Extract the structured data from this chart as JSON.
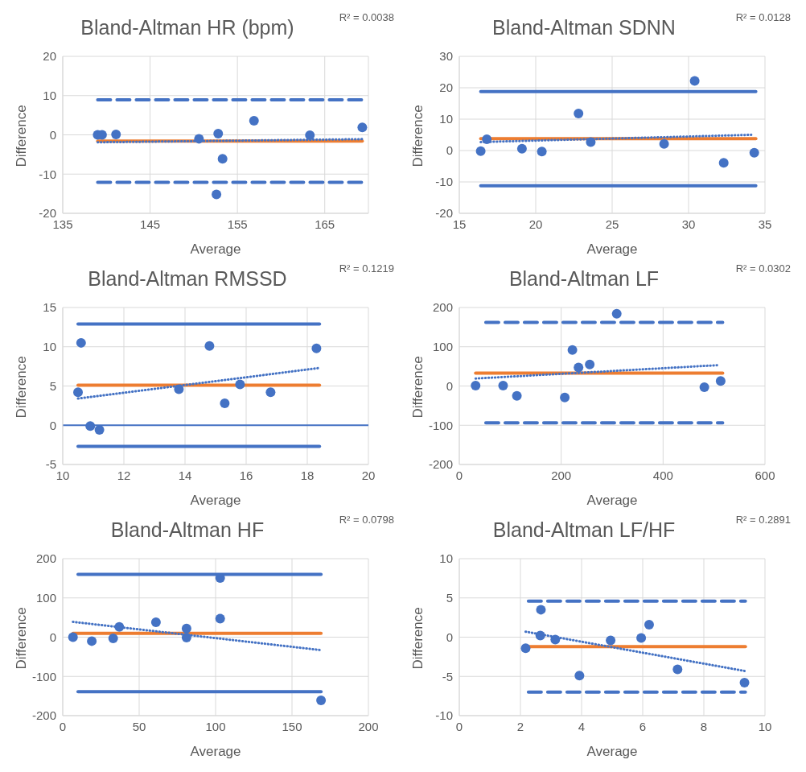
{
  "chart_data": [
    {
      "type": "scatter",
      "title": "Bland-Altman HR (bpm)",
      "xlabel": "Average",
      "ylabel": "Difference",
      "annotations": [
        "R² = 0.0038"
      ],
      "xlim": [
        135,
        170
      ],
      "xticks": [
        135,
        145,
        155,
        165
      ],
      "ylim": [
        -20,
        20
      ],
      "yticks": [
        -20,
        -10,
        0,
        10,
        20
      ],
      "grid": true,
      "series": [
        {
          "type": "line",
          "color": "#4472c4",
          "line_style": "dashed",
          "marker": "none",
          "x": [
            139.0,
            169.3
          ],
          "values": [
            8.9,
            8.9
          ]
        },
        {
          "type": "line",
          "color": "#4472c4",
          "line_style": "dashed",
          "marker": "none",
          "x": [
            139.0,
            169.3
          ],
          "values": [
            -12.1,
            -12.1
          ]
        },
        {
          "type": "line",
          "color": "#ed7d31",
          "line_style": "solid",
          "marker": "none",
          "x": [
            139.0,
            169.3
          ],
          "values": [
            -1.6,
            -1.6
          ]
        },
        {
          "type": "line",
          "color": "#4472c4",
          "line_style": "dotted",
          "marker": "none",
          "x": [
            139.0,
            169.3
          ],
          "values": [
            -1.9,
            -1.1
          ]
        },
        {
          "type": "scatter",
          "color": "#4472c4",
          "marker": "circle",
          "x": [
            139.0,
            139.5,
            141.1,
            150.6,
            152.8,
            153.3,
            152.6,
            156.9,
            163.3,
            169.3
          ],
          "values": [
            0,
            0,
            0.1,
            -1,
            0.3,
            -6.1,
            -15.2,
            3.6,
            -0.1,
            1.9
          ]
        }
      ]
    },
    {
      "type": "scatter",
      "title": "Bland-Altman SDNN",
      "xlabel": "Average",
      "ylabel": "Difference",
      "annotations": [
        "R² = 0.0128"
      ],
      "xlim": [
        15,
        35
      ],
      "xticks": [
        15,
        20,
        25,
        30,
        35
      ],
      "ylim": [
        -20,
        30
      ],
      "yticks": [
        -20,
        -10,
        0,
        10,
        20,
        30
      ],
      "grid": true,
      "series": [
        {
          "type": "line",
          "color": "#4472c4",
          "line_style": "solid",
          "marker": "none",
          "x": [
            16.4,
            34.4
          ],
          "values": [
            18.8,
            18.8
          ]
        },
        {
          "type": "line",
          "color": "#4472c4",
          "line_style": "solid",
          "marker": "none",
          "x": [
            16.4,
            34.4
          ],
          "values": [
            -11.2,
            -11.2
          ]
        },
        {
          "type": "line",
          "color": "#ed7d31",
          "line_style": "solid",
          "marker": "none",
          "x": [
            16.4,
            34.4
          ],
          "values": [
            3.8,
            3.8
          ]
        },
        {
          "type": "line",
          "color": "#4472c4",
          "line_style": "dotted",
          "marker": "none",
          "x": [
            16.4,
            34.1
          ],
          "values": [
            2.7,
            5.0
          ]
        },
        {
          "type": "scatter",
          "color": "#4472c4",
          "marker": "circle",
          "x": [
            16.4,
            16.8,
            19.1,
            20.4,
            22.8,
            23.6,
            28.4,
            30.4,
            32.3,
            34.3
          ],
          "values": [
            -0.2,
            3.6,
            0.6,
            -0.3,
            11.8,
            2.7,
            2.1,
            22.2,
            -3.9,
            -0.7
          ]
        }
      ]
    },
    {
      "type": "scatter",
      "title": "Bland-Altman RMSSD",
      "xlabel": "Average",
      "ylabel": "Difference",
      "annotations": [
        "R² = 0.1219"
      ],
      "xlim": [
        10,
        20
      ],
      "xticks": [
        10,
        12,
        14,
        16,
        18,
        20
      ],
      "ylim": [
        -5,
        15
      ],
      "yticks": [
        -5,
        0,
        5,
        10,
        15
      ],
      "grid": true,
      "ref_lines": [
        {
          "axis": "y",
          "value": 0,
          "color": "#4472c4"
        }
      ],
      "series": [
        {
          "type": "line",
          "color": "#4472c4",
          "line_style": "solid",
          "marker": "none",
          "x": [
            10.5,
            18.4
          ],
          "values": [
            12.9,
            12.9
          ]
        },
        {
          "type": "line",
          "color": "#4472c4",
          "line_style": "solid",
          "marker": "none",
          "x": [
            10.5,
            18.4
          ],
          "values": [
            -2.7,
            -2.7
          ]
        },
        {
          "type": "line",
          "color": "#ed7d31",
          "line_style": "solid",
          "marker": "none",
          "x": [
            10.5,
            18.4
          ],
          "values": [
            5.1,
            5.1
          ]
        },
        {
          "type": "line",
          "color": "#4472c4",
          "line_style": "dotted",
          "marker": "none",
          "x": [
            10.5,
            18.4
          ],
          "values": [
            3.4,
            7.3
          ]
        },
        {
          "type": "scatter",
          "color": "#4472c4",
          "marker": "circle",
          "x": [
            10.5,
            10.6,
            10.9,
            11.2,
            13.8,
            14.8,
            15.3,
            15.8,
            16.8,
            18.3
          ],
          "values": [
            4.2,
            10.5,
            -0.1,
            -0.6,
            4.6,
            10.1,
            2.8,
            5.2,
            4.2,
            9.8
          ]
        }
      ]
    },
    {
      "type": "scatter",
      "title": "Bland-Altman LF",
      "xlabel": "Average",
      "ylabel": "Difference",
      "annotations": [
        "R² = 0.0302"
      ],
      "xlim": [
        0,
        600
      ],
      "xticks": [
        0,
        200,
        400,
        600
      ],
      "ylim": [
        -200,
        200
      ],
      "yticks": [
        -200,
        -100,
        0,
        100,
        200
      ],
      "grid": true,
      "series": [
        {
          "type": "line",
          "color": "#4472c4",
          "line_style": "dashed",
          "marker": "none",
          "x": [
            52,
            517
          ],
          "values": [
            162,
            162
          ]
        },
        {
          "type": "line",
          "color": "#4472c4",
          "line_style": "dashed",
          "marker": "none",
          "x": [
            52,
            517
          ],
          "values": [
            -94,
            -94
          ]
        },
        {
          "type": "line",
          "color": "#ed7d31",
          "line_style": "solid",
          "marker": "none",
          "x": [
            32,
            517
          ],
          "values": [
            33,
            33
          ]
        },
        {
          "type": "line",
          "color": "#4472c4",
          "line_style": "dotted",
          "marker": "none",
          "x": [
            32,
            507
          ],
          "values": [
            19,
            53
          ]
        },
        {
          "type": "scatter",
          "color": "#4472c4",
          "marker": "circle",
          "x": [
            32,
            86,
            113,
            207,
            222,
            234,
            256,
            309,
            481,
            513
          ],
          "values": [
            1,
            1,
            -25,
            -29,
            92,
            47,
            55,
            184,
            -3,
            13
          ]
        }
      ]
    },
    {
      "type": "scatter",
      "title": "Bland-Altman HF",
      "xlabel": "Average",
      "ylabel": "Difference",
      "annotations": [
        "R² = 0.0798"
      ],
      "xlim": [
        0,
        200
      ],
      "xticks": [
        0,
        50,
        100,
        150,
        200
      ],
      "ylim": [
        -200,
        200
      ],
      "yticks": [
        -200,
        -100,
        0,
        100,
        200
      ],
      "grid": true,
      "series": [
        {
          "type": "line",
          "color": "#4472c4",
          "line_style": "solid",
          "marker": "none",
          "x": [
            10,
            169
          ],
          "values": [
            160,
            160
          ]
        },
        {
          "type": "line",
          "color": "#4472c4",
          "line_style": "solid",
          "marker": "none",
          "x": [
            10,
            169
          ],
          "values": [
            -139,
            -139
          ]
        },
        {
          "type": "line",
          "color": "#ed7d31",
          "line_style": "solid",
          "marker": "none",
          "x": [
            6.7,
            169
          ],
          "values": [
            10,
            10
          ]
        },
        {
          "type": "line",
          "color": "#4472c4",
          "line_style": "dotted",
          "marker": "none",
          "x": [
            6.7,
            169
          ],
          "values": [
            39,
            -33
          ]
        },
        {
          "type": "scatter",
          "color": "#4472c4",
          "marker": "circle",
          "x": [
            6.7,
            19,
            33,
            37,
            61,
            81,
            81,
            103,
            103,
            169
          ],
          "values": [
            0,
            -10,
            -3,
            26,
            38,
            22,
            -1,
            47,
            151,
            -161
          ]
        }
      ]
    },
    {
      "type": "scatter",
      "title": "Bland-Altman LF/HF",
      "xlabel": "Average",
      "ylabel": "Difference",
      "annotations": [
        "R² = 0.2891"
      ],
      "xlim": [
        0,
        10
      ],
      "xticks": [
        0,
        2,
        4,
        6,
        8,
        10
      ],
      "ylim": [
        -10,
        10
      ],
      "yticks": [
        -10,
        -5,
        0,
        5,
        10
      ],
      "grid": true,
      "series": [
        {
          "type": "line",
          "color": "#4472c4",
          "line_style": "dashed",
          "marker": "none",
          "x": [
            2.26,
            9.36
          ],
          "values": [
            4.6,
            4.6
          ]
        },
        {
          "type": "line",
          "color": "#4472c4",
          "line_style": "dashed",
          "marker": "none",
          "x": [
            2.26,
            9.36
          ],
          "values": [
            -7.0,
            -7.0
          ]
        },
        {
          "type": "line",
          "color": "#ed7d31",
          "line_style": "solid",
          "marker": "none",
          "x": [
            2.26,
            9.36
          ],
          "values": [
            -1.2,
            -1.2
          ]
        },
        {
          "type": "line",
          "color": "#4472c4",
          "line_style": "dotted",
          "marker": "none",
          "x": [
            2.17,
            9.33
          ],
          "values": [
            0.7,
            -4.3
          ]
        },
        {
          "type": "scatter",
          "color": "#4472c4",
          "marker": "circle",
          "x": [
            2.17,
            2.67,
            2.65,
            3.14,
            3.93,
            4.95,
            5.95,
            6.21,
            7.14,
            9.33
          ],
          "values": [
            -1.4,
            3.5,
            0.2,
            -0.3,
            -4.9,
            -0.4,
            -0.1,
            1.6,
            -4.1,
            -5.8
          ]
        }
      ]
    }
  ]
}
